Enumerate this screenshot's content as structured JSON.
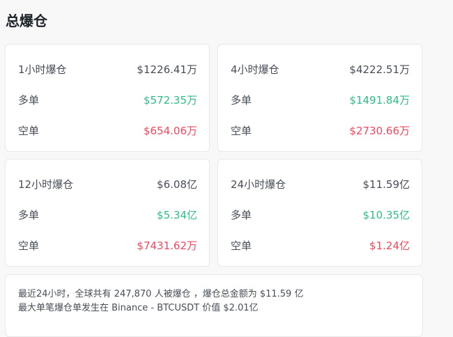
{
  "title": "总爆仓",
  "colors": {
    "long": "#2ebd85",
    "short": "#f6465d"
  },
  "cards": [
    {
      "label": "1小时爆仓",
      "total": "$1226.41万",
      "long_label": "多单",
      "long": "$572.35万",
      "short_label": "空单",
      "short": "$654.06万"
    },
    {
      "label": "4小时爆仓",
      "total": "$4222.51万",
      "long_label": "多单",
      "long": "$1491.84万",
      "short_label": "空单",
      "short": "$2730.66万"
    },
    {
      "label": "12小时爆仓",
      "total": "$6.08亿",
      "long_label": "多单",
      "long": "$5.34亿",
      "short_label": "空单",
      "short": "$7431.62万"
    },
    {
      "label": "24小时爆仓",
      "total": "$11.59亿",
      "long_label": "多单",
      "long": "$10.35亿",
      "short_label": "空单",
      "short": "$1.24亿"
    }
  ],
  "summary": {
    "line1": "最近24小时，全球共有 247,870 人被爆仓 ，爆仓总金额为 $11.59 亿",
    "line2": "最大单笔爆仓单发生在 Binance - BTCUSDT 价值 $2.01亿"
  }
}
